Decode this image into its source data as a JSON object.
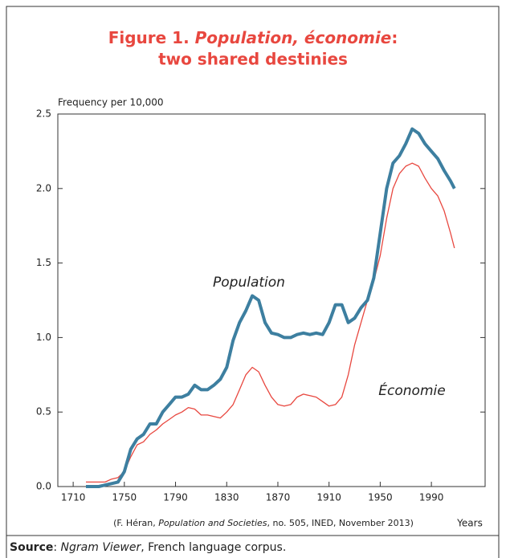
{
  "chart_data": {
    "type": "line",
    "title_parts": [
      "Figure 1.",
      "Population, économie",
      ":",
      "two shared destinies"
    ],
    "ylabel": "Frequency per 10,000",
    "xlabel": "Years",
    "citation_parts": [
      "(F. Héran,",
      "Population and Societies",
      ", no. 505, INED, November 2013)"
    ],
    "source_parts": [
      "Source",
      ": ",
      "Ngram Viewer",
      ", French language corpus."
    ],
    "annotations": [
      "Population",
      "Économie"
    ],
    "x": [
      1720,
      1725,
      1730,
      1735,
      1740,
      1745,
      1750,
      1755,
      1760,
      1765,
      1770,
      1775,
      1780,
      1785,
      1790,
      1795,
      1800,
      1805,
      1810,
      1815,
      1820,
      1825,
      1830,
      1835,
      1840,
      1845,
      1850,
      1855,
      1860,
      1865,
      1870,
      1875,
      1880,
      1885,
      1890,
      1895,
      1900,
      1905,
      1910,
      1915,
      1920,
      1925,
      1930,
      1935,
      1940,
      1945,
      1950,
      1955,
      1960,
      1965,
      1970,
      1975,
      1980,
      1985,
      1990,
      1995,
      2000,
      2005,
      2008
    ],
    "series": [
      {
        "name": "Population",
        "color": "#3d7fa0",
        "values": [
          0,
          0,
          0,
          0.01,
          0.02,
          0.03,
          0.1,
          0.25,
          0.32,
          0.35,
          0.42,
          0.42,
          0.5,
          0.55,
          0.6,
          0.6,
          0.62,
          0.68,
          0.65,
          0.65,
          0.68,
          0.72,
          0.8,
          0.98,
          1.1,
          1.18,
          1.28,
          1.25,
          1.1,
          1.03,
          1.02,
          1.0,
          1.0,
          1.02,
          1.03,
          1.02,
          1.03,
          1.02,
          1.1,
          1.22,
          1.22,
          1.1,
          1.13,
          1.2,
          1.25,
          1.4,
          1.7,
          2.0,
          2.17,
          2.22,
          2.3,
          2.4,
          2.37,
          2.3,
          2.25,
          2.2,
          2.12,
          2.05,
          2.0
        ]
      },
      {
        "name": "Économie",
        "color": "#e8473f",
        "values": [
          0.03,
          0.03,
          0.03,
          0.03,
          0.05,
          0.06,
          0.1,
          0.2,
          0.28,
          0.3,
          0.35,
          0.38,
          0.42,
          0.45,
          0.48,
          0.5,
          0.53,
          0.52,
          0.48,
          0.48,
          0.47,
          0.46,
          0.5,
          0.55,
          0.65,
          0.75,
          0.8,
          0.77,
          0.68,
          0.6,
          0.55,
          0.54,
          0.55,
          0.6,
          0.62,
          0.61,
          0.6,
          0.57,
          0.54,
          0.55,
          0.6,
          0.75,
          0.95,
          1.1,
          1.25,
          1.38,
          1.55,
          1.8,
          2.0,
          2.1,
          2.15,
          2.17,
          2.15,
          2.07,
          2.0,
          1.95,
          1.85,
          1.7,
          1.6
        ]
      }
    ],
    "xlim": [
      1698,
      2032
    ],
    "xticks": [
      1710,
      1750,
      1790,
      1830,
      1870,
      1910,
      1950,
      1990
    ],
    "ylim": [
      0,
      2.5
    ],
    "yticks": [
      {
        "value": 0,
        "label": "0.0"
      },
      0.5,
      {
        "value": 1,
        "label": "1.0"
      },
      1.5,
      {
        "value": 2,
        "label": "2.0"
      },
      2.5
    ],
    "grid": false,
    "title_color": "#e8473f"
  }
}
